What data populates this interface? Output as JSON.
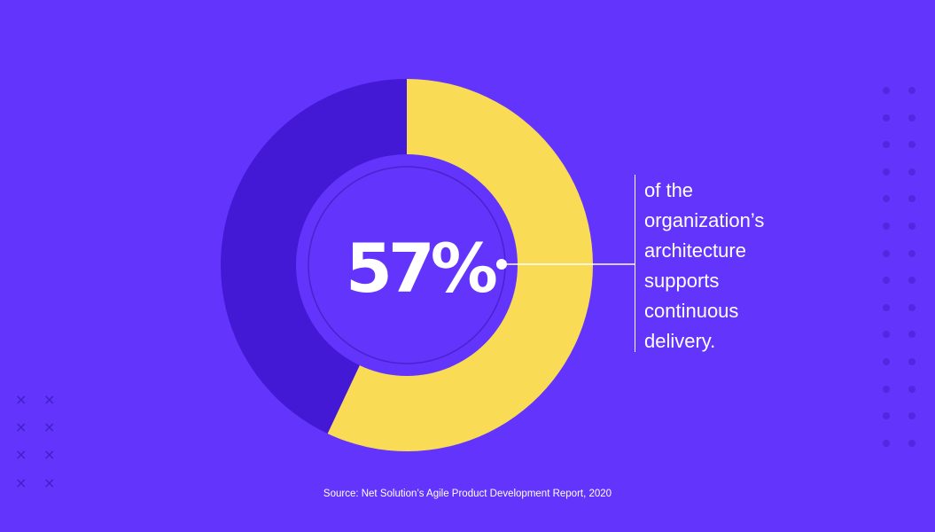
{
  "chart_data": {
    "type": "pie",
    "variant": "donut",
    "center_label": "57%",
    "slices": [
      {
        "label": "57%",
        "value": 57,
        "color": "#fadb55"
      },
      {
        "label": "",
        "value": 43,
        "color": "#4419d6"
      }
    ]
  },
  "caption": {
    "lines": [
      "of the",
      "organization’s",
      "architecture",
      "supports",
      "continuous",
      "delivery."
    ]
  },
  "source": "Source: Net Solution’s Agile Product Development Report, 2020",
  "colors": {
    "background": "#6234fc",
    "highlight": "#fadb55",
    "remainder": "#4419d6",
    "inner_disc": "#6234fc",
    "inner_ring": "#4a22cf",
    "text": "#ffffff",
    "decoration": "#4a22cf"
  },
  "decorations": {
    "left_pattern_icon": "cross-icon",
    "right_pattern_icon": "dot-icon"
  }
}
